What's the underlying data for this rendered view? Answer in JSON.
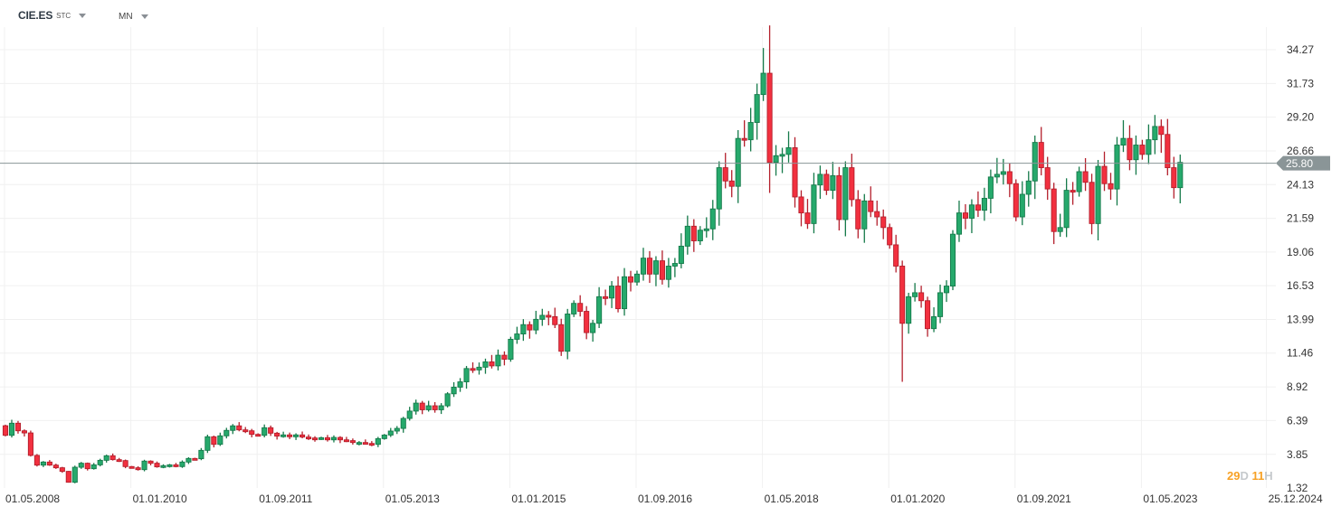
{
  "header": {
    "symbol": "CIE.ES",
    "type": "STC",
    "timeframe": "MN"
  },
  "price_label": "25.80",
  "countdown": {
    "days": "29",
    "days_unit": "D",
    "hours": "11",
    "hours_unit": "H"
  },
  "colors": {
    "up": "#26a96c",
    "up_border": "#157a4a",
    "down": "#f2303f",
    "down_border": "#b41f2c",
    "price_line": "#8a9597",
    "grid": "#f0f0f0"
  },
  "chart_data": {
    "type": "candlestick",
    "interval": "monthly",
    "first_period": "05.2008",
    "first_open": 6.0,
    "y_ticks": [
      "34.27",
      "31.73",
      "29.20",
      "26.66",
      "24.13",
      "21.59",
      "19.06",
      "16.53",
      "13.99",
      "11.46",
      "8.92",
      "6.39",
      "3.85",
      "1.32"
    ],
    "x_ticks": [
      {
        "label": "01.05.2008",
        "month_index": 0
      },
      {
        "label": "01.01.2010",
        "month_index": 20
      },
      {
        "label": "01.09.2011",
        "month_index": 40
      },
      {
        "label": "01.05.2013",
        "month_index": 60
      },
      {
        "label": "01.01.2015",
        "month_index": 80
      },
      {
        "label": "01.09.2016",
        "month_index": 100
      },
      {
        "label": "01.05.2018",
        "month_index": 120
      },
      {
        "label": "01.01.2020",
        "month_index": 140
      },
      {
        "label": "01.09.2021",
        "month_index": 160
      },
      {
        "label": "01.05.2023",
        "month_index": 180
      },
      {
        "label": "25.12.2024",
        "month_index": 199.8
      }
    ],
    "ylim": [
      1.32,
      34.27
    ],
    "last_price": 25.8,
    "close": [
      5.28,
      6.19,
      5.62,
      5.46,
      3.77,
      3.04,
      3.27,
      3.04,
      2.84,
      2.57,
      1.75,
      2.88,
      3.18,
      2.77,
      3.06,
      3.4,
      3.74,
      3.45,
      3.38,
      2.93,
      2.84,
      2.7,
      3.34,
      3.18,
      2.91,
      3.0,
      3.06,
      2.93,
      3.27,
      3.54,
      3.52,
      4.15,
      5.17,
      4.6,
      5.24,
      5.65,
      5.99,
      5.69,
      5.62,
      5.35,
      5.28,
      5.85,
      5.44,
      5.22,
      5.31,
      5.17,
      5.31,
      5.15,
      5.08,
      5.01,
      5.1,
      4.94,
      5.12,
      4.94,
      4.88,
      4.74,
      4.74,
      4.67,
      4.6,
      5.03,
      5.3,
      5.6,
      5.8,
      6.55,
      7.1,
      7.7,
      7.2,
      7.5,
      7.2,
      7.5,
      8.4,
      8.9,
      9.3,
      10.3,
      10.2,
      10.4,
      10.8,
      10.5,
      11.3,
      11.0,
      12.5,
      12.9,
      13.6,
      13.2,
      14.0,
      14.3,
      14.2,
      13.6,
      11.6,
      14.4,
      15.2,
      14.6,
      13.0,
      13.7,
      15.7,
      15.6,
      16.5,
      14.8,
      17.2,
      16.8,
      17.4,
      18.6,
      17.4,
      18.4,
      17.0,
      18.0,
      18.2,
      19.5,
      21.0,
      19.9,
      20.7,
      20.8,
      22.3,
      25.4,
      24.4,
      24.0,
      27.6,
      27.5,
      28.8,
      30.9,
      32.5,
      25.8,
      26.3,
      26.4,
      26.9,
      23.2,
      22.0,
      21.2,
      24.1,
      24.9,
      23.7,
      24.8,
      21.5,
      25.4,
      23.0,
      20.8,
      22.9,
      22.1,
      21.7,
      20.9,
      19.6,
      18.0,
      13.7,
      15.7,
      16.0,
      15.4,
      13.3,
      14.2,
      16.0,
      16.5,
      20.4,
      22.0,
      21.6,
      22.6,
      22.2,
      23.1,
      24.7,
      24.9,
      25.1,
      24.2,
      21.7,
      23.4,
      24.4,
      27.3,
      25.4,
      23.8,
      20.6,
      20.9,
      23.7,
      23.6,
      25.1,
      24.3,
      21.2,
      25.5,
      24.2,
      23.8,
      27.1,
      27.6,
      26.0,
      27.1,
      26.4,
      27.5,
      28.5,
      27.9,
      25.4,
      23.9,
      25.8
    ],
    "wick_overrides": {
      "120": [
        34.4,
        null
      ],
      "121": [
        36.1,
        23.5
      ],
      "142": [
        null,
        9.3
      ],
      "136": [
        [
          25.9
        ],
        null
      ]
    }
  }
}
